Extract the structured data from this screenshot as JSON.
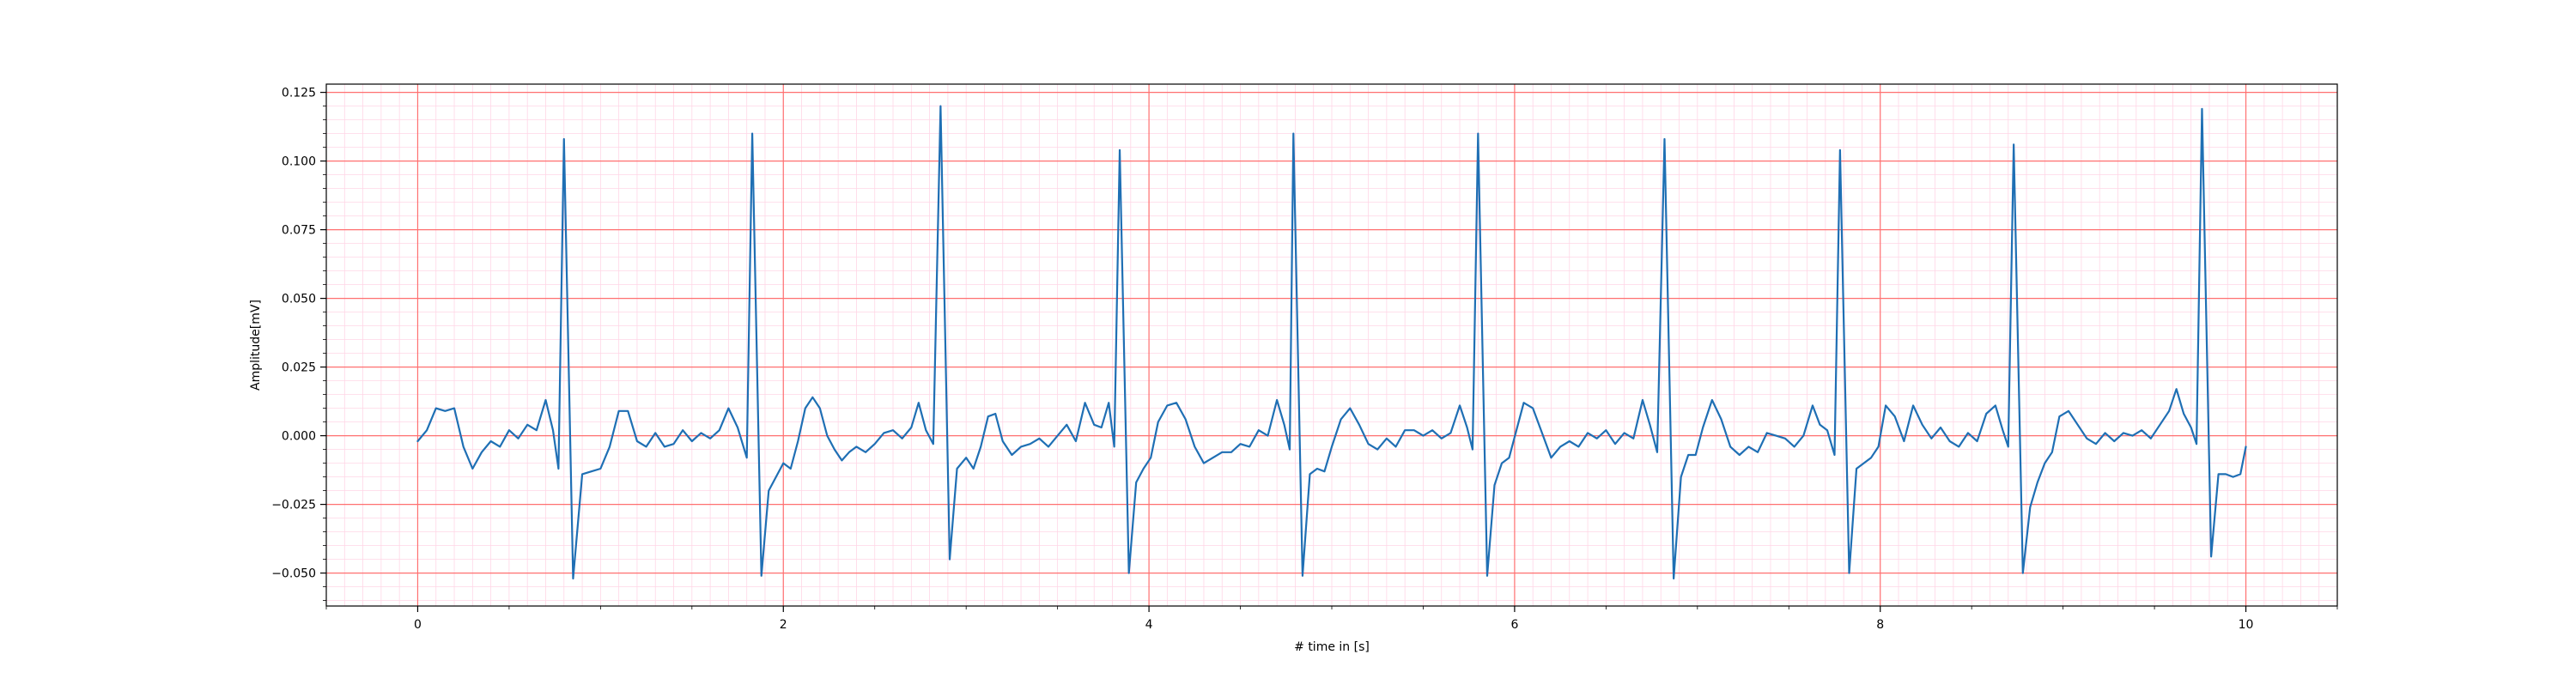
{
  "chart_data": {
    "type": "line",
    "title": "",
    "xlabel": "# time in [s]",
    "ylabel": "Amplitude[mV]",
    "xlim": [
      -0.5,
      10.5
    ],
    "ylim": [
      -0.062,
      0.128
    ],
    "x_ticks": [
      0,
      2,
      4,
      6,
      8,
      10
    ],
    "x_tick_labels": [
      "0",
      "2",
      "4",
      "6",
      "8",
      "10"
    ],
    "y_ticks": [
      -0.05,
      -0.025,
      0.0,
      0.025,
      0.05,
      0.075,
      0.1,
      0.125
    ],
    "y_tick_labels": [
      "−0.050",
      "−0.025",
      "0.000",
      "0.025",
      "0.050",
      "0.075",
      "0.100",
      "0.125"
    ],
    "grid": {
      "major": true,
      "minor": true,
      "major_color": "#ff7070",
      "minor_color": "#ffd6e6"
    },
    "legend": "none",
    "series": [
      {
        "color": "#1f6fb4",
        "r_peaks_x": [
          0.8,
          1.83,
          2.86,
          3.84,
          4.79,
          5.8,
          6.82,
          7.78,
          8.73,
          9.76
        ],
        "r_peaks_y": [
          0.108,
          0.11,
          0.12,
          0.104,
          0.11,
          0.11,
          0.108,
          0.104,
          0.106,
          0.119
        ],
        "s_troughs_x": [
          0.85,
          1.88,
          2.91,
          3.89,
          4.84,
          5.85,
          6.87,
          7.83,
          8.78,
          9.81
        ],
        "s_troughs_y": [
          -0.052,
          -0.051,
          -0.045,
          -0.05,
          -0.051,
          -0.051,
          -0.052,
          -0.05,
          -0.05,
          -0.044
        ],
        "points": [
          [
            0.0,
            -0.002
          ],
          [
            0.05,
            0.002
          ],
          [
            0.1,
            0.01
          ],
          [
            0.15,
            0.009
          ],
          [
            0.2,
            0.01
          ],
          [
            0.25,
            -0.004
          ],
          [
            0.3,
            -0.012
          ],
          [
            0.35,
            -0.006
          ],
          [
            0.4,
            -0.002
          ],
          [
            0.45,
            -0.004
          ],
          [
            0.5,
            0.002
          ],
          [
            0.55,
            -0.001
          ],
          [
            0.6,
            0.004
          ],
          [
            0.65,
            0.002
          ],
          [
            0.7,
            0.013
          ],
          [
            0.74,
            0.002
          ],
          [
            0.77,
            -0.012
          ],
          [
            0.8,
            0.108
          ],
          [
            0.85,
            -0.052
          ],
          [
            0.9,
            -0.014
          ],
          [
            0.95,
            -0.013
          ],
          [
            1.0,
            -0.012
          ],
          [
            1.05,
            -0.004
          ],
          [
            1.1,
            0.009
          ],
          [
            1.15,
            0.009
          ],
          [
            1.2,
            -0.002
          ],
          [
            1.25,
            -0.004
          ],
          [
            1.3,
            0.001
          ],
          [
            1.35,
            -0.004
          ],
          [
            1.4,
            -0.003
          ],
          [
            1.45,
            0.002
          ],
          [
            1.5,
            -0.002
          ],
          [
            1.55,
            0.001
          ],
          [
            1.6,
            -0.001
          ],
          [
            1.65,
            0.002
          ],
          [
            1.7,
            0.01
          ],
          [
            1.75,
            0.003
          ],
          [
            1.8,
            -0.008
          ],
          [
            1.83,
            0.11
          ],
          [
            1.88,
            -0.051
          ],
          [
            1.92,
            -0.02
          ],
          [
            1.96,
            -0.015
          ],
          [
            2.0,
            -0.01
          ],
          [
            2.04,
            -0.012
          ],
          [
            2.08,
            -0.002
          ],
          [
            2.12,
            0.01
          ],
          [
            2.16,
            0.014
          ],
          [
            2.2,
            0.01
          ],
          [
            2.24,
            0.0
          ],
          [
            2.28,
            -0.005
          ],
          [
            2.32,
            -0.009
          ],
          [
            2.36,
            -0.006
          ],
          [
            2.4,
            -0.004
          ],
          [
            2.45,
            -0.006
          ],
          [
            2.5,
            -0.003
          ],
          [
            2.55,
            0.001
          ],
          [
            2.6,
            0.002
          ],
          [
            2.65,
            -0.001
          ],
          [
            2.7,
            0.003
          ],
          [
            2.74,
            0.012
          ],
          [
            2.78,
            0.002
          ],
          [
            2.82,
            -0.003
          ],
          [
            2.86,
            0.12
          ],
          [
            2.91,
            -0.045
          ],
          [
            2.95,
            -0.012
          ],
          [
            3.0,
            -0.008
          ],
          [
            3.04,
            -0.012
          ],
          [
            3.08,
            -0.004
          ],
          [
            3.12,
            0.007
          ],
          [
            3.16,
            0.008
          ],
          [
            3.2,
            -0.002
          ],
          [
            3.25,
            -0.007
          ],
          [
            3.3,
            -0.004
          ],
          [
            3.35,
            -0.003
          ],
          [
            3.4,
            -0.001
          ],
          [
            3.45,
            -0.004
          ],
          [
            3.5,
            0.0
          ],
          [
            3.55,
            0.004
          ],
          [
            3.6,
            -0.002
          ],
          [
            3.65,
            0.012
          ],
          [
            3.7,
            0.004
          ],
          [
            3.74,
            0.003
          ],
          [
            3.78,
            0.012
          ],
          [
            3.81,
            -0.004
          ],
          [
            3.84,
            0.104
          ],
          [
            3.89,
            -0.05
          ],
          [
            3.93,
            -0.017
          ],
          [
            3.97,
            -0.012
          ],
          [
            4.01,
            -0.008
          ],
          [
            4.05,
            0.005
          ],
          [
            4.1,
            0.011
          ],
          [
            4.15,
            0.012
          ],
          [
            4.2,
            0.006
          ],
          [
            4.25,
            -0.004
          ],
          [
            4.3,
            -0.01
          ],
          [
            4.35,
            -0.008
          ],
          [
            4.4,
            -0.006
          ],
          [
            4.45,
            -0.006
          ],
          [
            4.5,
            -0.003
          ],
          [
            4.55,
            -0.004
          ],
          [
            4.6,
            0.002
          ],
          [
            4.65,
            0.0
          ],
          [
            4.7,
            0.013
          ],
          [
            4.74,
            0.004
          ],
          [
            4.77,
            -0.005
          ],
          [
            4.79,
            0.11
          ],
          [
            4.84,
            -0.051
          ],
          [
            4.88,
            -0.014
          ],
          [
            4.92,
            -0.012
          ],
          [
            4.96,
            -0.013
          ],
          [
            5.0,
            -0.004
          ],
          [
            5.05,
            0.006
          ],
          [
            5.1,
            0.01
          ],
          [
            5.15,
            0.004
          ],
          [
            5.2,
            -0.003
          ],
          [
            5.25,
            -0.005
          ],
          [
            5.3,
            -0.001
          ],
          [
            5.35,
            -0.004
          ],
          [
            5.4,
            0.002
          ],
          [
            5.45,
            0.002
          ],
          [
            5.5,
            0.0
          ],
          [
            5.55,
            0.002
          ],
          [
            5.6,
            -0.001
          ],
          [
            5.65,
            0.001
          ],
          [
            5.7,
            0.011
          ],
          [
            5.74,
            0.003
          ],
          [
            5.77,
            -0.005
          ],
          [
            5.8,
            0.11
          ],
          [
            5.85,
            -0.051
          ],
          [
            5.89,
            -0.018
          ],
          [
            5.93,
            -0.01
          ],
          [
            5.97,
            -0.008
          ],
          [
            6.01,
            0.002
          ],
          [
            6.05,
            0.012
          ],
          [
            6.1,
            0.01
          ],
          [
            6.15,
            0.001
          ],
          [
            6.2,
            -0.008
          ],
          [
            6.25,
            -0.004
          ],
          [
            6.3,
            -0.002
          ],
          [
            6.35,
            -0.004
          ],
          [
            6.4,
            0.001
          ],
          [
            6.45,
            -0.001
          ],
          [
            6.5,
            0.002
          ],
          [
            6.55,
            -0.003
          ],
          [
            6.6,
            0.001
          ],
          [
            6.65,
            -0.001
          ],
          [
            6.7,
            0.013
          ],
          [
            6.74,
            0.004
          ],
          [
            6.78,
            -0.006
          ],
          [
            6.82,
            0.108
          ],
          [
            6.87,
            -0.052
          ],
          [
            6.91,
            -0.015
          ],
          [
            6.95,
            -0.007
          ],
          [
            6.99,
            -0.007
          ],
          [
            7.03,
            0.003
          ],
          [
            7.08,
            0.013
          ],
          [
            7.13,
            0.006
          ],
          [
            7.18,
            -0.004
          ],
          [
            7.23,
            -0.007
          ],
          [
            7.28,
            -0.004
          ],
          [
            7.33,
            -0.006
          ],
          [
            7.38,
            0.001
          ],
          [
            7.43,
            0.0
          ],
          [
            7.48,
            -0.001
          ],
          [
            7.53,
            -0.004
          ],
          [
            7.58,
            0.0
          ],
          [
            7.63,
            0.011
          ],
          [
            7.67,
            0.004
          ],
          [
            7.71,
            0.002
          ],
          [
            7.75,
            -0.007
          ],
          [
            7.78,
            0.104
          ],
          [
            7.83,
            -0.05
          ],
          [
            7.87,
            -0.012
          ],
          [
            7.91,
            -0.01
          ],
          [
            7.95,
            -0.008
          ],
          [
            7.99,
            -0.004
          ],
          [
            8.03,
            0.011
          ],
          [
            8.08,
            0.007
          ],
          [
            8.13,
            -0.002
          ],
          [
            8.18,
            0.011
          ],
          [
            8.23,
            0.004
          ],
          [
            8.28,
            -0.001
          ],
          [
            8.33,
            0.003
          ],
          [
            8.38,
            -0.002
          ],
          [
            8.43,
            -0.004
          ],
          [
            8.48,
            0.001
          ],
          [
            8.53,
            -0.002
          ],
          [
            8.58,
            0.008
          ],
          [
            8.63,
            0.011
          ],
          [
            8.67,
            0.002
          ],
          [
            8.7,
            -0.004
          ],
          [
            8.73,
            0.106
          ],
          [
            8.78,
            -0.05
          ],
          [
            8.82,
            -0.026
          ],
          [
            8.86,
            -0.017
          ],
          [
            8.9,
            -0.01
          ],
          [
            8.94,
            -0.006
          ],
          [
            8.98,
            0.007
          ],
          [
            9.03,
            0.009
          ],
          [
            9.08,
            0.004
          ],
          [
            9.13,
            -0.001
          ],
          [
            9.18,
            -0.003
          ],
          [
            9.23,
            0.001
          ],
          [
            9.28,
            -0.002
          ],
          [
            9.33,
            0.001
          ],
          [
            9.38,
            0.0
          ],
          [
            9.43,
            0.002
          ],
          [
            9.48,
            -0.001
          ],
          [
            9.53,
            0.004
          ],
          [
            9.58,
            0.009
          ],
          [
            9.62,
            0.017
          ],
          [
            9.66,
            0.008
          ],
          [
            9.7,
            0.003
          ],
          [
            9.73,
            -0.003
          ],
          [
            9.76,
            0.119
          ],
          [
            9.81,
            -0.044
          ],
          [
            9.85,
            -0.014
          ],
          [
            9.89,
            -0.014
          ],
          [
            9.93,
            -0.015
          ],
          [
            9.97,
            -0.014
          ],
          [
            10.0,
            -0.004
          ]
        ]
      }
    ]
  }
}
